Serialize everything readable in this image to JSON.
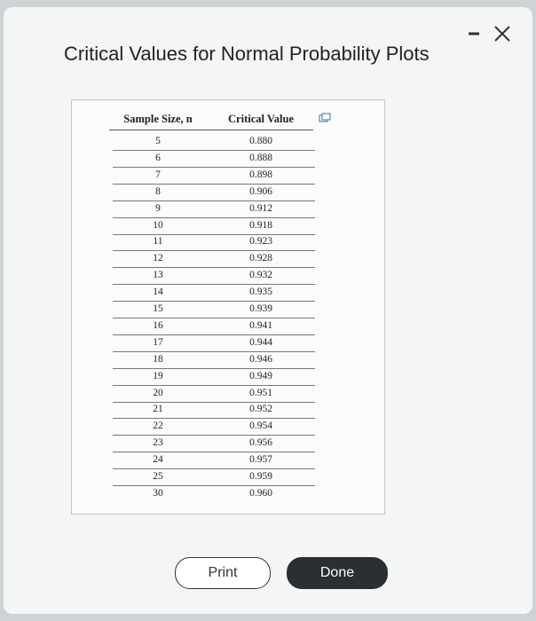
{
  "dialog": {
    "title": "Critical Values for Normal Probability Plots",
    "table": {
      "headers": [
        "Sample Size, n",
        "Critical Value"
      ],
      "rows": [
        [
          "5",
          "0.880"
        ],
        [
          "6",
          "0.888"
        ],
        [
          "7",
          "0.898"
        ],
        [
          "8",
          "0.906"
        ],
        [
          "9",
          "0.912"
        ],
        [
          "10",
          "0.918"
        ],
        [
          "11",
          "0.923"
        ],
        [
          "12",
          "0.928"
        ],
        [
          "13",
          "0.932"
        ],
        [
          "14",
          "0.935"
        ],
        [
          "15",
          "0.939"
        ],
        [
          "16",
          "0.941"
        ],
        [
          "17",
          "0.944"
        ],
        [
          "18",
          "0.946"
        ],
        [
          "19",
          "0.949"
        ],
        [
          "20",
          "0.951"
        ],
        [
          "21",
          "0.952"
        ],
        [
          "22",
          "0.954"
        ],
        [
          "23",
          "0.956"
        ],
        [
          "24",
          "0.957"
        ],
        [
          "25",
          "0.959"
        ],
        [
          "30",
          "0.960"
        ]
      ]
    },
    "buttons": [
      "Print",
      "Done"
    ]
  }
}
